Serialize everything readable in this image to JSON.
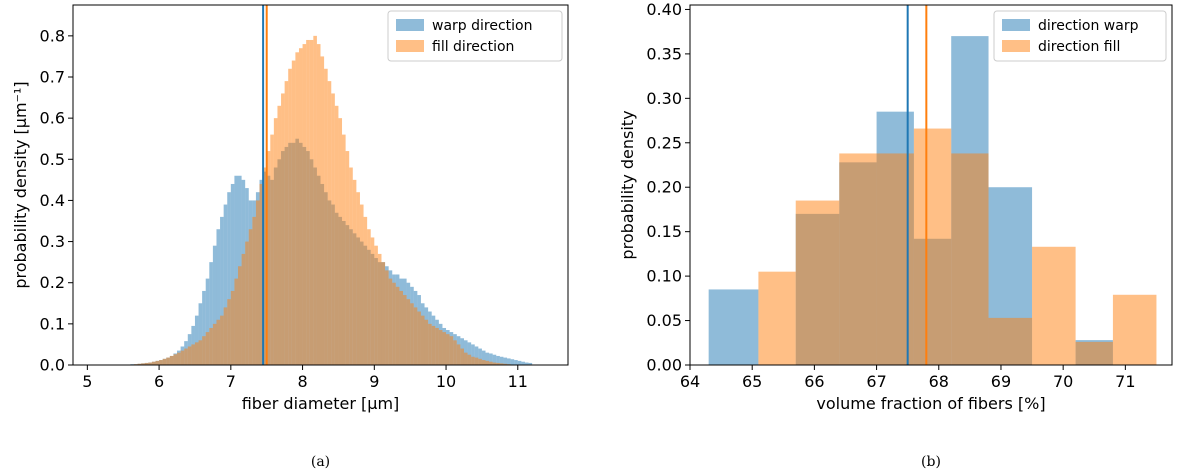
{
  "chart_data": [
    {
      "type": "histogram",
      "xlabel": "fiber diameter [μm]",
      "ylabel": "probability density [μm⁻¹]",
      "xlim": [
        4.8,
        11.7
      ],
      "ylim": [
        0,
        0.875
      ],
      "xticks": [
        5,
        6,
        7,
        8,
        9,
        10,
        11
      ],
      "yticks": [
        0.0,
        0.1,
        0.2,
        0.3,
        0.4,
        0.5,
        0.6,
        0.7,
        0.8
      ],
      "legend_position": "top-right",
      "caption": "(a)",
      "series": [
        {
          "name": "warp direction",
          "color": "#1f77b4",
          "bin_start": 5.5,
          "bin_width": 0.05,
          "values": [
            0.001,
            0.001,
            0.002,
            0.002,
            0.003,
            0.004,
            0.005,
            0.006,
            0.008,
            0.01,
            0.012,
            0.015,
            0.018,
            0.022,
            0.028,
            0.035,
            0.045,
            0.058,
            0.075,
            0.095,
            0.12,
            0.15,
            0.18,
            0.21,
            0.25,
            0.29,
            0.33,
            0.36,
            0.39,
            0.42,
            0.44,
            0.46,
            0.46,
            0.45,
            0.43,
            0.4,
            0.4,
            0.42,
            0.45,
            0.47,
            0.46,
            0.45,
            0.48,
            0.5,
            0.52,
            0.53,
            0.54,
            0.54,
            0.55,
            0.54,
            0.53,
            0.52,
            0.5,
            0.48,
            0.46,
            0.44,
            0.42,
            0.4,
            0.39,
            0.37,
            0.36,
            0.35,
            0.34,
            0.33,
            0.32,
            0.31,
            0.3,
            0.29,
            0.28,
            0.27,
            0.26,
            0.25,
            0.25,
            0.24,
            0.23,
            0.22,
            0.22,
            0.21,
            0.21,
            0.2,
            0.19,
            0.18,
            0.17,
            0.15,
            0.14,
            0.13,
            0.12,
            0.11,
            0.1,
            0.09,
            0.085,
            0.08,
            0.075,
            0.07,
            0.065,
            0.06,
            0.055,
            0.05,
            0.045,
            0.04,
            0.035,
            0.03,
            0.028,
            0.025,
            0.022,
            0.02,
            0.018,
            0.016,
            0.014,
            0.012,
            0.01,
            0.008,
            0.006,
            0.005
          ]
        },
        {
          "name": "fill direction",
          "color": "#ff7f0e",
          "bin_start": 5.6,
          "bin_width": 0.05,
          "values": [
            0.001,
            0.002,
            0.003,
            0.004,
            0.005,
            0.006,
            0.008,
            0.01,
            0.012,
            0.015,
            0.018,
            0.022,
            0.026,
            0.03,
            0.035,
            0.04,
            0.045,
            0.05,
            0.055,
            0.06,
            0.07,
            0.08,
            0.09,
            0.1,
            0.11,
            0.12,
            0.14,
            0.16,
            0.18,
            0.21,
            0.24,
            0.27,
            0.3,
            0.33,
            0.36,
            0.4,
            0.44,
            0.48,
            0.52,
            0.56,
            0.6,
            0.63,
            0.66,
            0.69,
            0.72,
            0.74,
            0.76,
            0.77,
            0.78,
            0.79,
            0.79,
            0.8,
            0.78,
            0.75,
            0.72,
            0.69,
            0.66,
            0.63,
            0.6,
            0.56,
            0.52,
            0.48,
            0.45,
            0.42,
            0.39,
            0.36,
            0.33,
            0.31,
            0.29,
            0.27,
            0.25,
            0.23,
            0.21,
            0.2,
            0.19,
            0.18,
            0.17,
            0.16,
            0.15,
            0.14,
            0.13,
            0.12,
            0.11,
            0.1,
            0.095,
            0.09,
            0.085,
            0.08,
            0.075,
            0.07,
            0.06,
            0.05,
            0.04,
            0.03,
            0.025,
            0.02,
            0.018,
            0.015,
            0.012,
            0.01,
            0.008,
            0.006,
            0.005,
            0.004,
            0.003,
            0.002
          ]
        }
      ],
      "vlines": [
        {
          "x": 7.45,
          "color": "#1f77b4"
        },
        {
          "x": 7.5,
          "color": "#ff7f0e"
        }
      ]
    },
    {
      "type": "histogram",
      "xlabel": "volume fraction of fibers [%]",
      "ylabel": "probability density",
      "xlim": [
        64.0,
        71.75
      ],
      "ylim": [
        0,
        0.405
      ],
      "xticks": [
        64,
        65,
        66,
        67,
        68,
        69,
        70,
        71
      ],
      "yticks": [
        0.0,
        0.05,
        0.1,
        0.15,
        0.2,
        0.25,
        0.3,
        0.35,
        0.4
      ],
      "legend_position": "top-right",
      "caption": "(b)",
      "series": [
        {
          "name": "direction warp",
          "color": "#1f77b4",
          "bins": [
            {
              "x0": 64.3,
              "x1": 65.1,
              "v": 0.085
            },
            {
              "x0": 65.1,
              "x1": 65.7,
              "v": 0.0
            },
            {
              "x0": 65.7,
              "x1": 66.4,
              "v": 0.17
            },
            {
              "x0": 66.4,
              "x1": 67.0,
              "v": 0.228
            },
            {
              "x0": 67.0,
              "x1": 67.6,
              "v": 0.285
            },
            {
              "x0": 67.6,
              "x1": 68.2,
              "v": 0.142
            },
            {
              "x0": 68.2,
              "x1": 68.8,
              "v": 0.37
            },
            {
              "x0": 68.8,
              "x1": 69.5,
              "v": 0.2
            },
            {
              "x0": 69.5,
              "x1": 70.2,
              "v": 0.0
            },
            {
              "x0": 70.2,
              "x1": 70.8,
              "v": 0.028
            }
          ]
        },
        {
          "name": "direction fill",
          "color": "#ff7f0e",
          "bins": [
            {
              "x0": 65.1,
              "x1": 65.7,
              "v": 0.105
            },
            {
              "x0": 65.7,
              "x1": 66.4,
              "v": 0.185
            },
            {
              "x0": 66.4,
              "x1": 67.0,
              "v": 0.238
            },
            {
              "x0": 67.0,
              "x1": 67.6,
              "v": 0.238
            },
            {
              "x0": 67.6,
              "x1": 68.2,
              "v": 0.266
            },
            {
              "x0": 68.2,
              "x1": 68.8,
              "v": 0.238
            },
            {
              "x0": 68.8,
              "x1": 69.5,
              "v": 0.053
            },
            {
              "x0": 69.5,
              "x1": 70.2,
              "v": 0.133
            },
            {
              "x0": 70.2,
              "x1": 70.8,
              "v": 0.026
            },
            {
              "x0": 70.8,
              "x1": 71.5,
              "v": 0.079
            }
          ]
        }
      ],
      "vlines": [
        {
          "x": 67.5,
          "color": "#1f77b4"
        },
        {
          "x": 67.8,
          "color": "#ff7f0e"
        }
      ]
    }
  ]
}
